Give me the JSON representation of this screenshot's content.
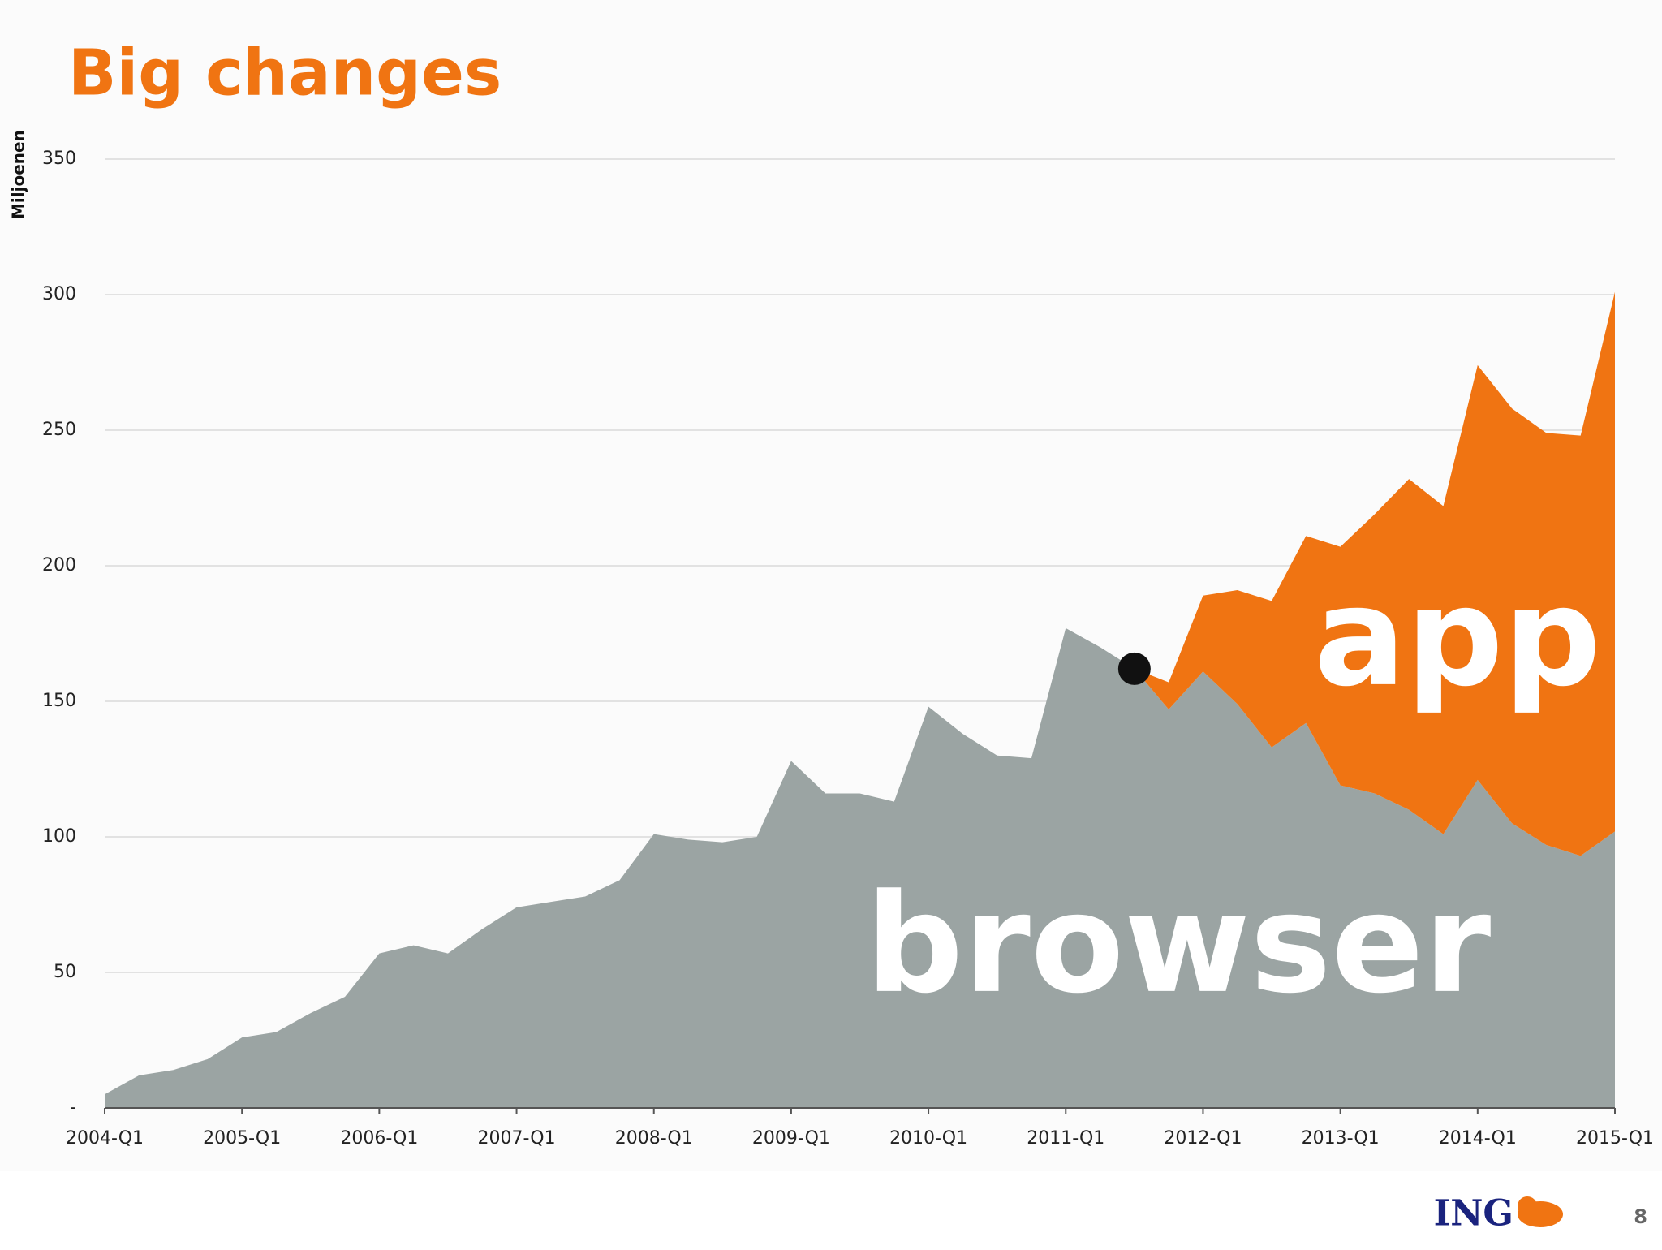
{
  "slide": {
    "title": "Big changes",
    "logo": "ING",
    "page_number": "8"
  },
  "chart_data": {
    "type": "stacked-area",
    "y_label": "Miljoenen",
    "categories": [
      "2004-Q1",
      null,
      null,
      null,
      "2005-Q1",
      null,
      null,
      null,
      "2006-Q1",
      null,
      null,
      null,
      "2007-Q1",
      null,
      null,
      null,
      "2008-Q1",
      null,
      null,
      null,
      "2009-Q1",
      null,
      null,
      null,
      "2010-Q1",
      null,
      null,
      null,
      "2011-Q1",
      null,
      null,
      null,
      "2012-Q1",
      null,
      null,
      null,
      "2013-Q1",
      null,
      null,
      null,
      "2014-Q1",
      null,
      null,
      null,
      "2015-Q1"
    ],
    "series": [
      {
        "name": "browser",
        "color": "#9ba4a3",
        "values": [
          5,
          12,
          14,
          18,
          26,
          28,
          35,
          41,
          57,
          60,
          57,
          66,
          74,
          76,
          78,
          84,
          101,
          99,
          98,
          100,
          128,
          116,
          116,
          113,
          148,
          138,
          130,
          129,
          177,
          170,
          162,
          147,
          161,
          149,
          133,
          142,
          119,
          116,
          110,
          101,
          121,
          105,
          97,
          93,
          102
        ]
      },
      {
        "name": "app",
        "color": "#f07412",
        "values": [
          0,
          0,
          0,
          0,
          0,
          0,
          0,
          0,
          0,
          0,
          0,
          0,
          0,
          0,
          0,
          0,
          0,
          0,
          0,
          0,
          0,
          0,
          0,
          0,
          0,
          0,
          0,
          0,
          0,
          0,
          0,
          10,
          28,
          42,
          54,
          69,
          88,
          103,
          122,
          121,
          153,
          153,
          152,
          155,
          199
        ]
      }
    ],
    "ylim": [
      0,
      350
    ],
    "yticks": [
      {
        "value": 0,
        "label": "-"
      },
      50,
      100,
      150,
      200,
      250,
      300,
      350
    ],
    "grid": true
  }
}
